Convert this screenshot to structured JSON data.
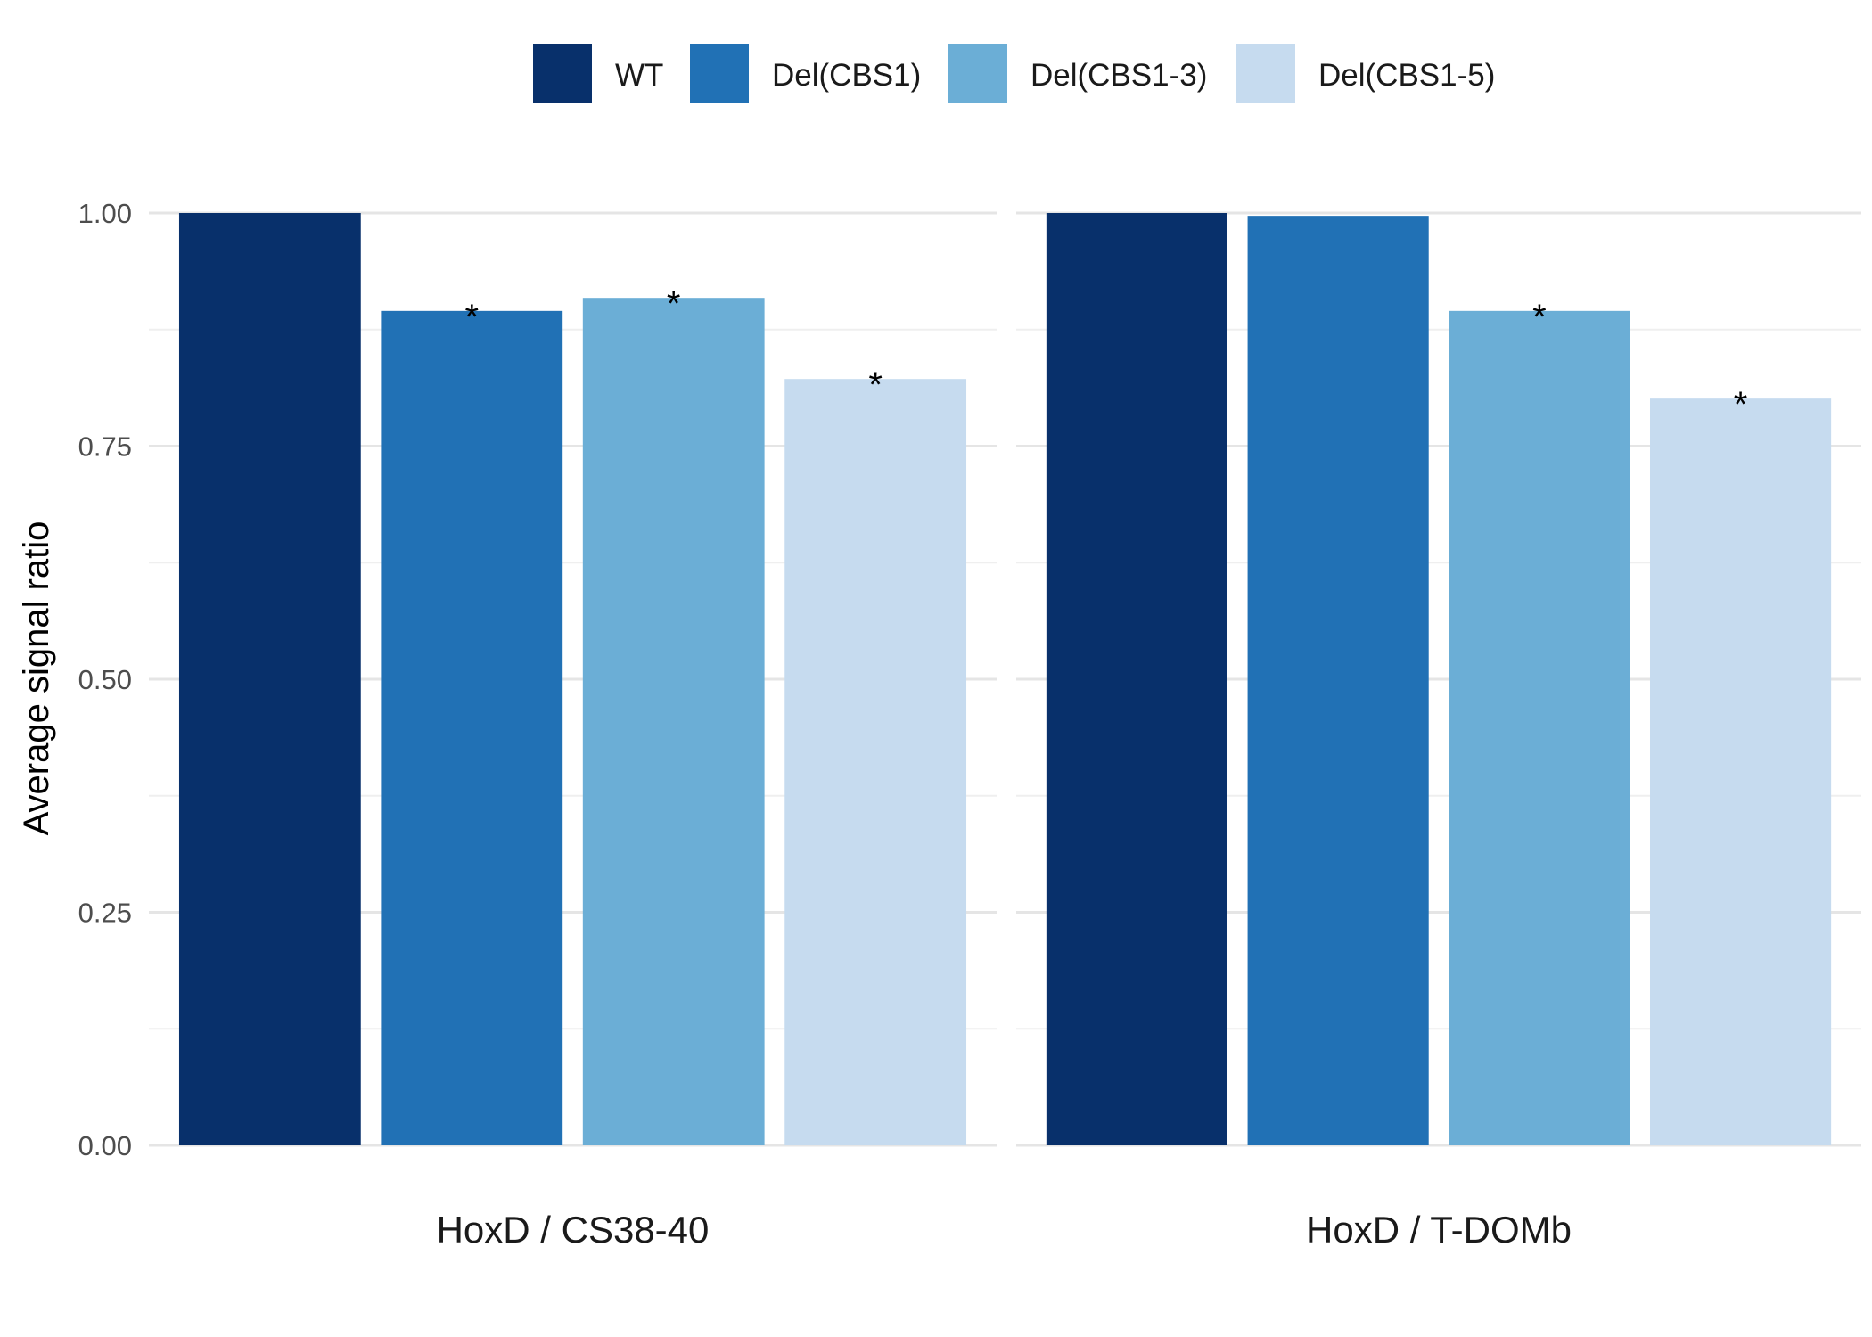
{
  "chart_data": {
    "type": "bar",
    "ylabel": "Average signal ratio",
    "ylim": [
      0,
      1.0
    ],
    "yticks": [
      "0.00",
      "0.25",
      "0.50",
      "0.75",
      "1.00"
    ],
    "grid": true,
    "legend_position": "top",
    "series": [
      {
        "name": "WT",
        "color": "#08306b"
      },
      {
        "name": "Del(CBS1)",
        "color": "#2171b5"
      },
      {
        "name": "Del(CBS1-3)",
        "color": "#6baed6"
      },
      {
        "name": "Del(CBS1-5)",
        "color": "#c6dbef"
      }
    ],
    "panels": [
      {
        "label": "HoxD / CS38-40",
        "values": [
          1.0,
          0.895,
          0.909,
          0.822
        ],
        "significant": [
          false,
          true,
          true,
          true
        ]
      },
      {
        "label": "HoxD / T-DOMb",
        "values": [
          1.0,
          0.997,
          0.895,
          0.801
        ],
        "significant": [
          false,
          false,
          true,
          true
        ]
      }
    ],
    "significance_marker": "*"
  }
}
